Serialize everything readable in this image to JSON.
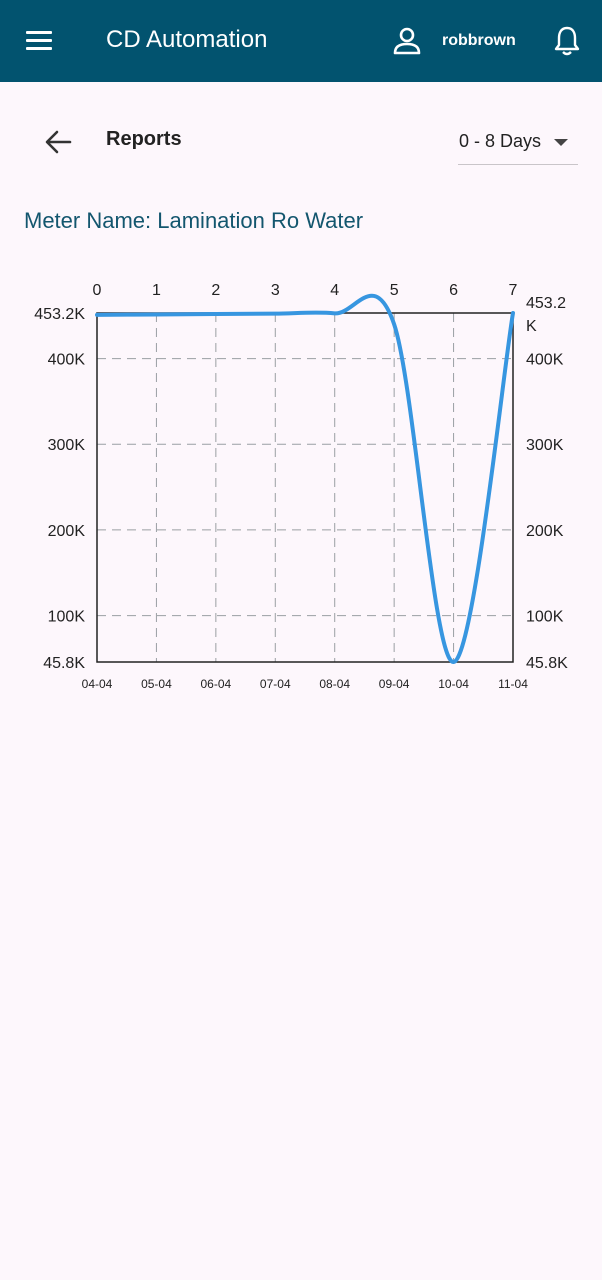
{
  "appbar": {
    "title": "CD Automation",
    "username": "robbrown",
    "icons": [
      "menu-icon",
      "user-icon",
      "bell-icon"
    ],
    "color": "#02536f"
  },
  "toolbar": {
    "title": "Reports",
    "range_value": "0 - 8 Days",
    "back_icon": "arrow-left-icon"
  },
  "meter": {
    "label": "Meter Name: Lamination Ro Water"
  },
  "chart_data": {
    "type": "line",
    "x": [
      0,
      1,
      2,
      3,
      4,
      5,
      6,
      7
    ],
    "top_tick_labels": [
      "0",
      "1",
      "2",
      "3",
      "4",
      "5",
      "6",
      "7"
    ],
    "bottom_tick_labels": [
      "04-04",
      "05-04",
      "06-04",
      "07-04",
      "08-04",
      "09-04",
      "10-04",
      "11-04"
    ],
    "y_tick_labels_left": [
      "45.8K",
      "100K",
      "200K",
      "300K",
      "400K",
      "453.2K"
    ],
    "y_tick_labels_right": [
      "45.8K",
      "100K",
      "200K",
      "300K",
      "400K",
      "453.2 K"
    ],
    "y_ticks": [
      45800,
      100000,
      200000,
      300000,
      400000,
      453200
    ],
    "series": [
      {
        "values": [
          451000,
          451500,
          452000,
          452500,
          452800,
          440000,
          45800,
          453200
        ],
        "color": "#3796e0"
      }
    ],
    "xlim": [
      0,
      7
    ],
    "ylim": [
      45800,
      453200
    ],
    "grid": true,
    "legend": "none"
  }
}
